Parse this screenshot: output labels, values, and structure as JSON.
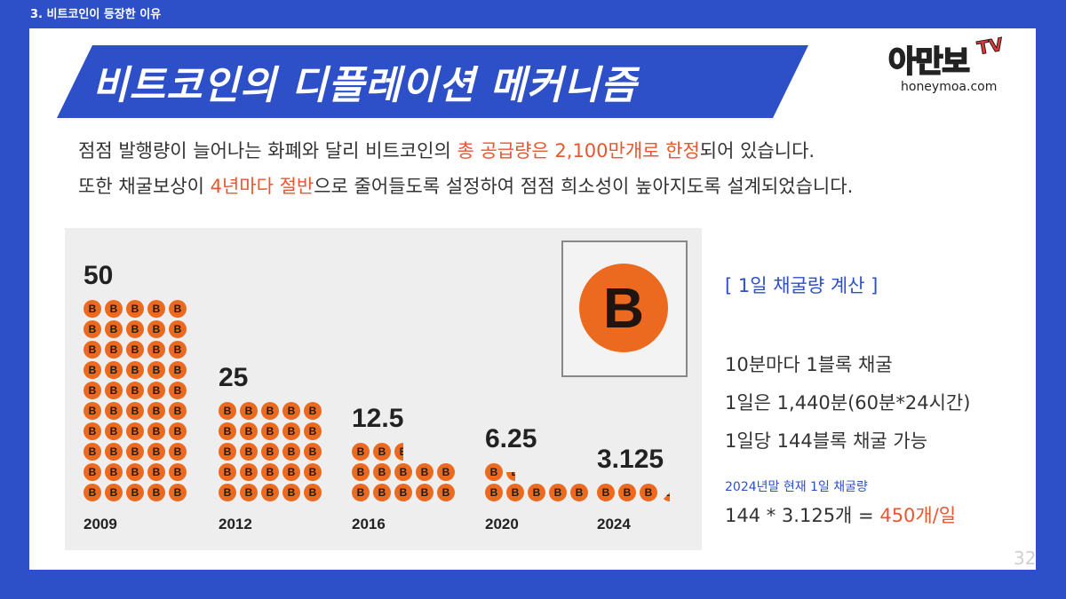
{
  "section_label": "3. 비트코인이 등장한 이유",
  "title": "비트코인의 디플레이션 메커니즘",
  "logo": {
    "main": "아만보",
    "tv": "TV",
    "url": "honeymoa.com"
  },
  "description": {
    "line1": {
      "before": "점점 발행량이 늘어나는 화폐와 달리 비트코인의 ",
      "highlight": "총 공급량은 2,100만개로 한정",
      "after": "되어 있습니다."
    },
    "line2": {
      "before": "또한 채굴보상이 ",
      "highlight": "4년마다 절반",
      "after": "으로 줄어들도록 설정하여 점점 희소성이 높아지도록 설계되었습니다."
    }
  },
  "chart_data": {
    "type": "bar",
    "categories": [
      "2009",
      "2012",
      "2016",
      "2020",
      "2024"
    ],
    "values": [
      50,
      25,
      12.5,
      6.25,
      3.125
    ],
    "value_labels": [
      "50",
      "25",
      "12.5",
      "6.25",
      "3.125"
    ],
    "coin_symbol": "B"
  },
  "big_coin_symbol": "B",
  "calc": {
    "title": "[ 1일 채굴량 계산 ]",
    "line1": "10분마다 1블록 채굴",
    "line2": "1일은 1,440분(60분*24시간)",
    "line3": "1일당 144블록 채굴 가능",
    "sub": "2024년말 현재 1일 채굴량",
    "result_prefix": "144 * 3.125개 = ",
    "result_highlight": "450개/일"
  },
  "page_number": "32",
  "colors": {
    "accent": "#2d50c8",
    "highlight": "#e8572f",
    "coin": "#ec6a1f"
  }
}
